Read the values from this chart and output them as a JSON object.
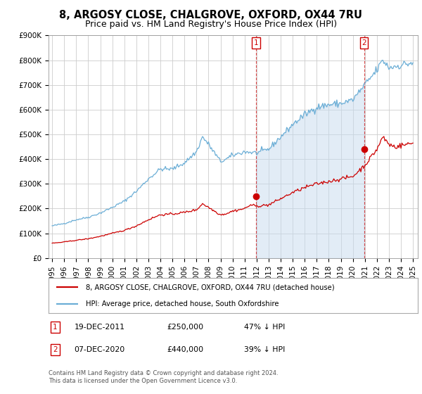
{
  "title": "8, ARGOSY CLOSE, CHALGROVE, OXFORD, OX44 7RU",
  "subtitle": "Price paid vs. HM Land Registry's House Price Index (HPI)",
  "ylim": [
    0,
    900000
  ],
  "yticks": [
    0,
    100000,
    200000,
    300000,
    400000,
    500000,
    600000,
    700000,
    800000,
    900000
  ],
  "ytick_labels": [
    "£0",
    "£100K",
    "£200K",
    "£300K",
    "£400K",
    "£500K",
    "£600K",
    "£700K",
    "£800K",
    "£900K"
  ],
  "background_color": "#ffffff",
  "plot_bg_color": "#ffffff",
  "grid_color": "#cccccc",
  "hpi_color": "#6baed6",
  "hpi_fill_color": "#c6dbef",
  "price_color": "#cc0000",
  "sale1_date": 2011.97,
  "sale1_price": 250000,
  "sale2_date": 2020.93,
  "sale2_price": 440000,
  "legend_line1": "8, ARGOSY CLOSE, CHALGROVE, OXFORD, OX44 7RU (detached house)",
  "legend_line2": "HPI: Average price, detached house, South Oxfordshire",
  "footer": "Contains HM Land Registry data © Crown copyright and database right 2024.\nThis data is licensed under the Open Government Licence v3.0.",
  "title_fontsize": 10.5,
  "subtitle_fontsize": 9,
  "tick_fontsize": 7.5,
  "hpi_anchors": {
    "1995.0": 130000,
    "1996.0": 140000,
    "1997.0": 155000,
    "1998.0": 165000,
    "1999.0": 182000,
    "2000.0": 205000,
    "2001.0": 230000,
    "2002.0": 270000,
    "2003.0": 320000,
    "2004.0": 360000,
    "2005.0": 360000,
    "2006.0": 385000,
    "2007.0": 430000,
    "2007.5": 490000,
    "2008.0": 460000,
    "2009.0": 390000,
    "2009.5": 400000,
    "2010.0": 415000,
    "2011.0": 430000,
    "2012.0": 425000,
    "2013.0": 440000,
    "2014.0": 490000,
    "2015.0": 540000,
    "2016.0": 580000,
    "2017.0": 610000,
    "2018.0": 620000,
    "2019.0": 625000,
    "2020.0": 640000,
    "2021.0": 700000,
    "2022.0": 760000,
    "2022.5": 800000,
    "2023.0": 770000,
    "2024.0": 780000,
    "2025.0": 790000
  },
  "price_anchors": {
    "1995.0": 60000,
    "1996.0": 65000,
    "1997.0": 72000,
    "1998.0": 78000,
    "1999.0": 88000,
    "2000.0": 100000,
    "2001.0": 112000,
    "2002.0": 130000,
    "2003.0": 155000,
    "2004.0": 175000,
    "2005.0": 178000,
    "2006.0": 185000,
    "2007.0": 195000,
    "2007.5": 220000,
    "2008.0": 205000,
    "2009.0": 175000,
    "2009.5": 180000,
    "2010.0": 190000,
    "2011.0": 200000,
    "2011.5": 215000,
    "2012.0": 210000,
    "2013.0": 215000,
    "2014.0": 240000,
    "2015.0": 265000,
    "2016.0": 285000,
    "2017.0": 300000,
    "2018.0": 310000,
    "2019.0": 320000,
    "2020.0": 330000,
    "2021.0": 375000,
    "2022.0": 440000,
    "2022.5": 490000,
    "2023.0": 460000,
    "2023.5": 450000,
    "2024.0": 455000,
    "2025.0": 465000
  }
}
